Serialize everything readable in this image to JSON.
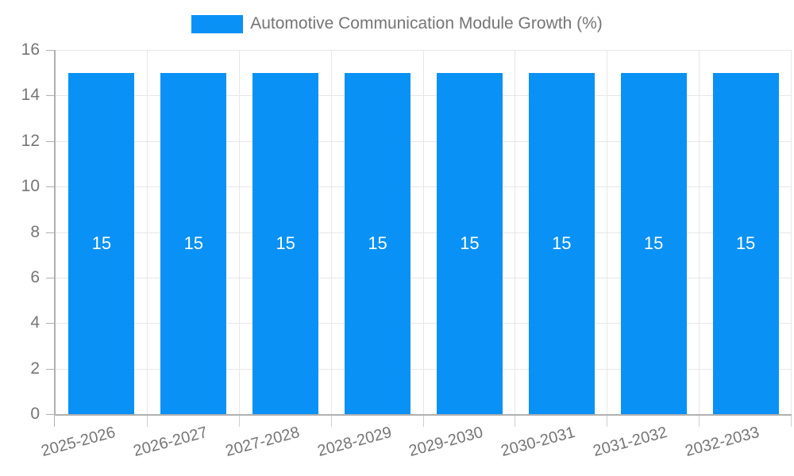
{
  "legend": {
    "label": "Automotive Communication Module Growth (%)",
    "swatch_color": "#0991f5"
  },
  "chart_data": {
    "type": "bar",
    "title": "Automotive Communication Module Growth (%)",
    "categories": [
      "2025-2026",
      "2026-2027",
      "2027-2028",
      "2028-2029",
      "2029-2030",
      "2030-2031",
      "2031-2032",
      "2032-2033"
    ],
    "values": [
      15,
      15,
      15,
      15,
      15,
      15,
      15,
      15
    ],
    "bar_value_labels": [
      "15",
      "15",
      "15",
      "15",
      "15",
      "15",
      "15",
      "15"
    ],
    "xlabel": "",
    "ylabel": "",
    "ylim": [
      0,
      16
    ],
    "yticks": [
      0,
      2,
      4,
      6,
      8,
      10,
      12,
      14,
      16
    ],
    "grid": true,
    "legend_position": "top",
    "colors": {
      "bar": "#0991f5",
      "grid": "#e7e7e7",
      "axis": "#b0b0b0",
      "text": "#757575",
      "bar_label": "#ffffff"
    }
  }
}
